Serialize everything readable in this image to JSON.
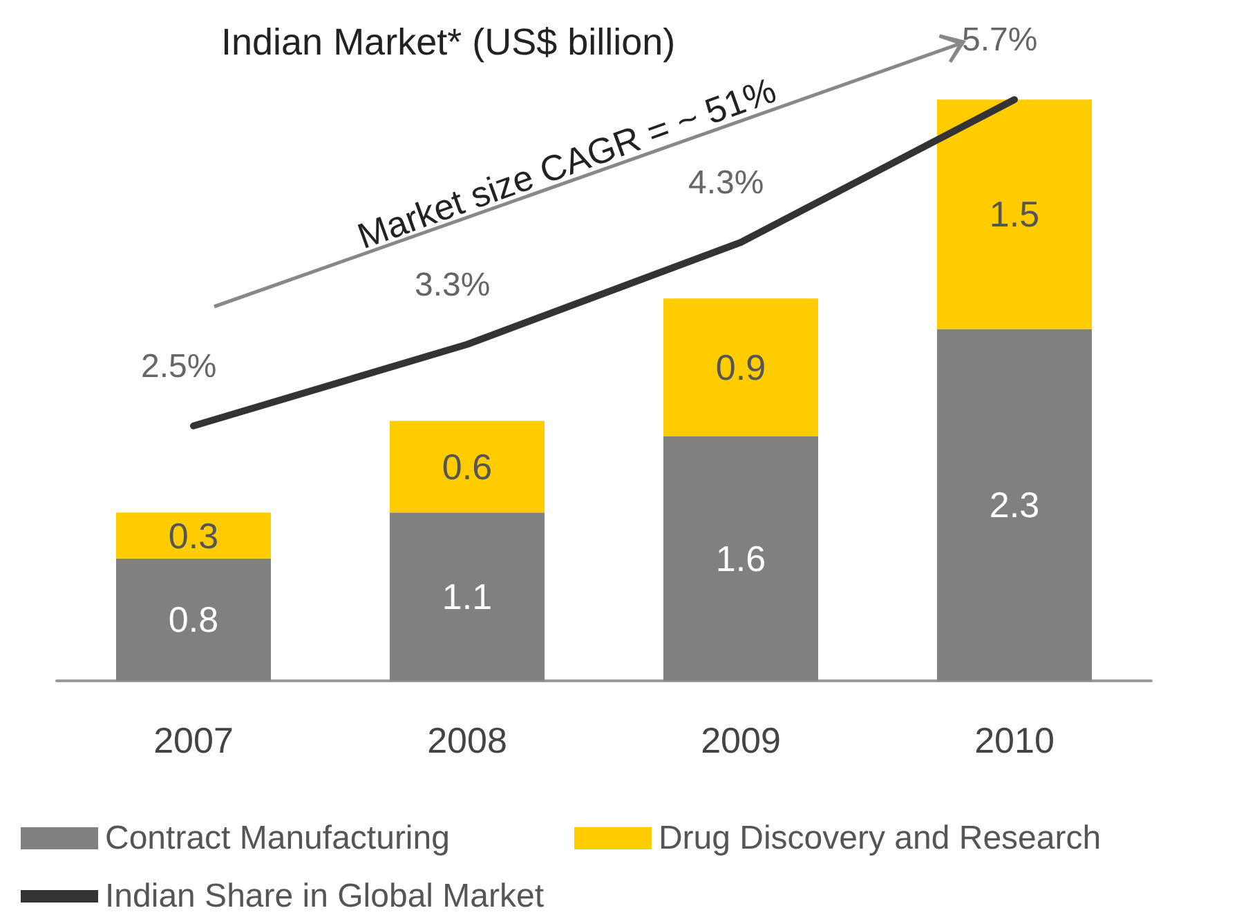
{
  "chart_data": {
    "type": "bar",
    "title": "Indian Market* (US$ billion)",
    "categories": [
      "2007",
      "2008",
      "2009",
      "2010"
    ],
    "stacked": true,
    "data_labels": true,
    "legend": "bottom",
    "marker": "none",
    "annotations": [
      "Market size CAGR = ~ 51%"
    ],
    "series": [
      {
        "name": "Contract Manufacturing",
        "color": "#808080",
        "values": [
          0.8,
          1.1,
          1.6,
          2.3
        ]
      },
      {
        "name": "Drug Discovery and Research",
        "color": "#ffcc00",
        "values": [
          0.3,
          0.6,
          0.9,
          1.5
        ]
      },
      {
        "name": "Indian Share in Global Market",
        "type": "line",
        "axis": "y2",
        "color": "#333333",
        "values": [
          2.5,
          3.3,
          4.3,
          5.7
        ],
        "value_labels": [
          "2.5%",
          "3.3%",
          "4.3%",
          "5.7%"
        ]
      }
    ]
  }
}
